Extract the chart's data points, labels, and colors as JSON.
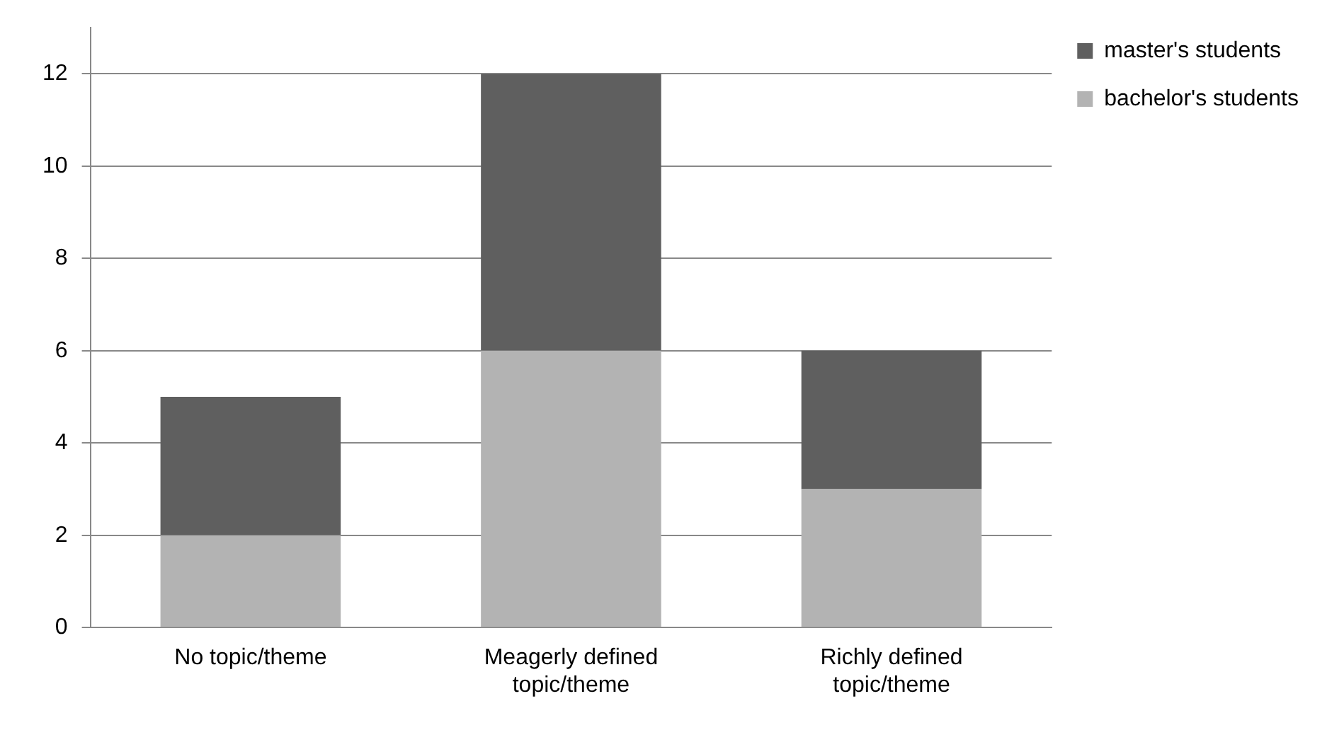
{
  "chart_data": {
    "type": "bar",
    "stacked": true,
    "categories": [
      "No topic/theme",
      "Meagerly defined topic/theme",
      "Richly defined topic/theme"
    ],
    "series": [
      {
        "name": "bachelor's students",
        "color": "#b3b3b3",
        "values": [
          2,
          6,
          3
        ]
      },
      {
        "name": "master's students",
        "color": "#5f5f5f",
        "values": [
          3,
          6,
          3
        ]
      }
    ],
    "ylim": [
      0,
      13
    ],
    "yticks": [
      0,
      2,
      4,
      6,
      8,
      10,
      12
    ],
    "grid": "y",
    "legend": "top right"
  }
}
